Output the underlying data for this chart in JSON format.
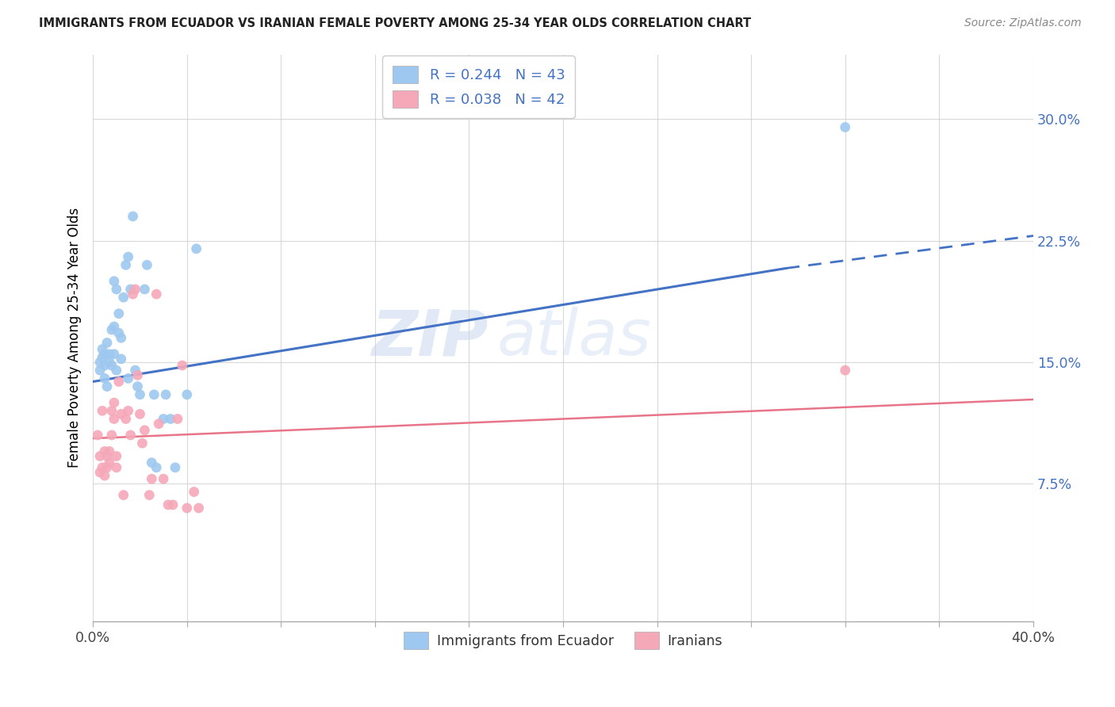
{
  "title": "IMMIGRANTS FROM ECUADOR VS IRANIAN FEMALE POVERTY AMONG 25-34 YEAR OLDS CORRELATION CHART",
  "source": "Source: ZipAtlas.com",
  "ylabel": "Female Poverty Among 25-34 Year Olds",
  "ytick_labels": [
    "7.5%",
    "15.0%",
    "22.5%",
    "30.0%"
  ],
  "ytick_values": [
    0.075,
    0.15,
    0.225,
    0.3
  ],
  "xtick_labels": [
    "0.0%",
    "",
    "",
    "",
    "",
    "",
    "",
    "",
    "",
    "",
    "40.0%"
  ],
  "xtick_values": [
    0.0,
    0.04,
    0.08,
    0.12,
    0.16,
    0.2,
    0.24,
    0.28,
    0.32,
    0.36,
    0.4
  ],
  "xlim": [
    0.0,
    0.4
  ],
  "ylim": [
    -0.01,
    0.34
  ],
  "legend_label1": "Immigrants from Ecuador",
  "legend_label2": "Iranians",
  "legend_r1": "R = 0.244",
  "legend_n1": "N = 43",
  "legend_r2": "R = 0.038",
  "legend_n2": "N = 42",
  "color_ecuador": "#9EC8EF",
  "color_iran": "#F5A8B8",
  "color_trendline1": "#4472C4",
  "color_trendline2": "#E8748A",
  "color_yticks": "#4472C4",
  "watermark_zip": "ZIP",
  "watermark_atlas": "atlas",
  "trendline1_x0": 0.0,
  "trendline1_y0": 0.138,
  "trendline1_x1": 0.295,
  "trendline1_y1": 0.208,
  "trendline1_dash_x1": 0.4,
  "trendline1_dash_y1": 0.228,
  "trendline2_x0": 0.0,
  "trendline2_y0": 0.103,
  "trendline2_x1": 0.4,
  "trendline2_y1": 0.127,
  "ecuador_x": [
    0.003,
    0.003,
    0.004,
    0.004,
    0.005,
    0.005,
    0.005,
    0.006,
    0.006,
    0.007,
    0.007,
    0.008,
    0.008,
    0.009,
    0.009,
    0.009,
    0.01,
    0.01,
    0.011,
    0.011,
    0.012,
    0.012,
    0.013,
    0.014,
    0.015,
    0.015,
    0.016,
    0.017,
    0.018,
    0.019,
    0.02,
    0.022,
    0.023,
    0.025,
    0.026,
    0.027,
    0.03,
    0.031,
    0.033,
    0.035,
    0.04,
    0.044,
    0.32
  ],
  "ecuador_y": [
    0.145,
    0.15,
    0.153,
    0.158,
    0.14,
    0.148,
    0.155,
    0.135,
    0.162,
    0.15,
    0.155,
    0.148,
    0.17,
    0.155,
    0.172,
    0.2,
    0.195,
    0.145,
    0.168,
    0.18,
    0.152,
    0.165,
    0.19,
    0.21,
    0.14,
    0.215,
    0.195,
    0.24,
    0.145,
    0.135,
    0.13,
    0.195,
    0.21,
    0.088,
    0.13,
    0.085,
    0.115,
    0.13,
    0.115,
    0.085,
    0.13,
    0.22,
    0.295
  ],
  "iran_x": [
    0.002,
    0.003,
    0.003,
    0.004,
    0.004,
    0.005,
    0.005,
    0.006,
    0.006,
    0.007,
    0.007,
    0.008,
    0.008,
    0.009,
    0.009,
    0.01,
    0.01,
    0.011,
    0.012,
    0.013,
    0.014,
    0.015,
    0.016,
    0.017,
    0.018,
    0.019,
    0.02,
    0.021,
    0.022,
    0.024,
    0.025,
    0.027,
    0.028,
    0.03,
    0.032,
    0.034,
    0.036,
    0.038,
    0.04,
    0.043,
    0.045,
    0.32
  ],
  "iran_y": [
    0.105,
    0.082,
    0.092,
    0.085,
    0.12,
    0.08,
    0.095,
    0.085,
    0.092,
    0.088,
    0.095,
    0.12,
    0.105,
    0.115,
    0.125,
    0.085,
    0.092,
    0.138,
    0.118,
    0.068,
    0.115,
    0.12,
    0.105,
    0.192,
    0.195,
    0.142,
    0.118,
    0.1,
    0.108,
    0.068,
    0.078,
    0.192,
    0.112,
    0.078,
    0.062,
    0.062,
    0.115,
    0.148,
    0.06,
    0.07,
    0.06,
    0.145
  ]
}
